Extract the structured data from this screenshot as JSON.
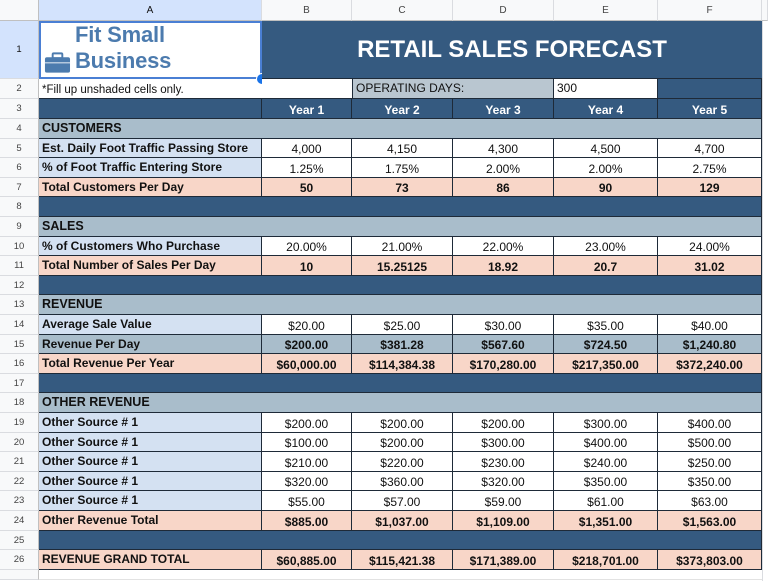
{
  "sheet": {
    "columns": [
      "A",
      "B",
      "C",
      "D",
      "E",
      "F"
    ],
    "rows": [
      "1",
      "2",
      "3",
      "4",
      "5",
      "6",
      "7",
      "8",
      "9",
      "10",
      "11",
      "12",
      "13",
      "14",
      "15",
      "16",
      "17",
      "18",
      "19",
      "20",
      "21",
      "22",
      "23",
      "24",
      "25",
      "26"
    ]
  },
  "header": {
    "logo_text": "Fit Small Business",
    "logo_icon": "briefcase-icon",
    "title": "RETAIL SALES FORECAST",
    "note": "*Fill up unshaded cells only.",
    "operating_days_label": "OPERATING DAYS:",
    "operating_days_value": "300",
    "years": [
      "Year 1",
      "Year 2",
      "Year 3",
      "Year 4",
      "Year 5"
    ]
  },
  "sections": {
    "customers": {
      "title": "CUSTOMERS",
      "rows": [
        {
          "label": "Est. Daily Foot Traffic Passing Store",
          "values": [
            "4,000",
            "4,150",
            "4,300",
            "4,500",
            "4,700"
          ]
        },
        {
          "label": "% of Foot Traffic Entering Store",
          "values": [
            "1.25%",
            "1.75%",
            "2.00%",
            "2.00%",
            "2.75%"
          ]
        },
        {
          "label": "Total Customers Per Day",
          "values": [
            "50",
            "73",
            "86",
            "90",
            "129"
          ]
        }
      ]
    },
    "sales": {
      "title": "SALES",
      "rows": [
        {
          "label": "% of Customers Who Purchase",
          "values": [
            "20.00%",
            "21.00%",
            "22.00%",
            "23.00%",
            "24.00%"
          ]
        },
        {
          "label": "Total Number of Sales Per Day",
          "values": [
            "10",
            "15.25125",
            "18.92",
            "20.7",
            "31.02"
          ]
        }
      ]
    },
    "revenue": {
      "title": "REVENUE",
      "rows": [
        {
          "label": "Average Sale Value",
          "values": [
            "$20.00",
            "$25.00",
            "$30.00",
            "$35.00",
            "$40.00"
          ]
        },
        {
          "label": "Revenue Per Day",
          "values": [
            "$200.00",
            "$381.28",
            "$567.60",
            "$724.50",
            "$1,240.80"
          ]
        },
        {
          "label": "Total Revenue Per Year",
          "values": [
            "$60,000.00",
            "$114,384.38",
            "$170,280.00",
            "$217,350.00",
            "$372,240.00"
          ]
        }
      ]
    },
    "other_revenue": {
      "title": "OTHER REVENUE",
      "rows": [
        {
          "label": "Other Source # 1",
          "values": [
            "$200.00",
            "$200.00",
            "$200.00",
            "$300.00",
            "$400.00"
          ]
        },
        {
          "label": "Other Source # 1",
          "values": [
            "$100.00",
            "$200.00",
            "$300.00",
            "$400.00",
            "$500.00"
          ]
        },
        {
          "label": "Other Source # 1",
          "values": [
            "$210.00",
            "$220.00",
            "$230.00",
            "$240.00",
            "$250.00"
          ]
        },
        {
          "label": "Other Source # 1",
          "values": [
            "$320.00",
            "$360.00",
            "$320.00",
            "$350.00",
            "$350.00"
          ]
        },
        {
          "label": "Other Source # 1",
          "values": [
            "$55.00",
            "$57.00",
            "$59.00",
            "$61.00",
            "$63.00"
          ]
        },
        {
          "label": "Other Revenue Total",
          "values": [
            "$885.00",
            "$1,037.00",
            "$1,109.00",
            "$1,351.00",
            "$1,563.00"
          ]
        }
      ]
    },
    "grand_total": {
      "label": "REVENUE GRAND TOTAL",
      "values": [
        "$60,885.00",
        "$115,421.38",
        "$171,389.00",
        "$218,701.00",
        "$373,803.00"
      ]
    }
  },
  "colors": {
    "dark_blue": "#355a80",
    "section_gray": "#a9bdcb",
    "label_lightblue": "#d4e1f2",
    "total_pink": "#f8d6c8",
    "logo_blue": "#4c7bae",
    "selection_blue": "#1a73e8"
  }
}
